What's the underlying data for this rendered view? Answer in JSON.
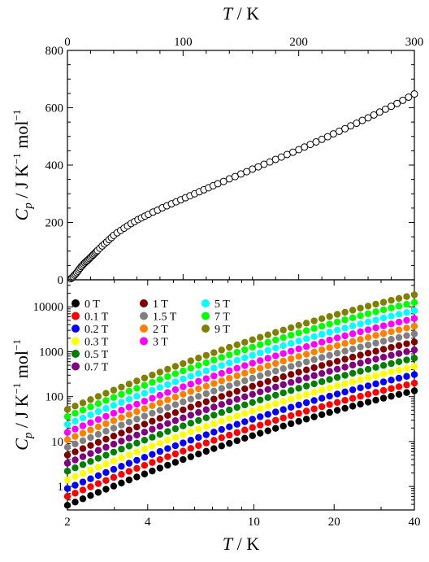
{
  "chart_data": [
    {
      "type": "scatter",
      "title": "",
      "xlabel": {
        "sym": "T",
        "unit": "K"
      },
      "ylabel": {
        "sym": "C",
        "sub": "p",
        "unit": "J K",
        "mol": "mol"
      },
      "x_axis_position": "top",
      "xlim": [
        0,
        300
      ],
      "ylim": [
        0,
        800
      ],
      "xticks": [
        0,
        100,
        200,
        300
      ],
      "yticks": [
        0,
        200,
        400,
        600,
        800
      ],
      "marker": "open-circle",
      "series": [
        {
          "x": [
            3,
            4,
            5,
            6,
            7,
            8,
            9,
            10,
            11,
            12,
            13,
            14,
            15,
            16,
            17,
            18,
            19,
            20,
            21,
            22,
            23,
            24,
            25,
            26,
            28,
            30,
            32,
            34,
            36,
            38,
            40,
            43,
            46,
            49,
            52,
            55,
            58,
            61,
            64,
            67,
            70,
            74,
            78,
            82,
            86,
            90,
            94,
            98,
            102,
            106,
            110,
            114,
            118,
            122,
            126,
            130,
            135,
            140,
            145,
            150,
            155,
            160,
            165,
            170,
            175,
            180,
            185,
            190,
            195,
            200,
            205,
            210,
            215,
            220,
            225,
            230,
            235,
            240,
            245,
            250,
            255,
            260,
            265,
            270,
            275,
            280,
            285,
            290,
            295,
            300
          ],
          "y": [
            4,
            7,
            11,
            16,
            20,
            25,
            30,
            36,
            41,
            46,
            50,
            55,
            59,
            63,
            66,
            70,
            74,
            78,
            82,
            86,
            90,
            94,
            98,
            102,
            110,
            118,
            125,
            132,
            140,
            147,
            155,
            164,
            172,
            180,
            188,
            196,
            203,
            210,
            216,
            222,
            228,
            236,
            243,
            251,
            258,
            265,
            272,
            279,
            286,
            293,
            300,
            307,
            314,
            321,
            328,
            335,
            343,
            352,
            360,
            369,
            377,
            386,
            394,
            403,
            411,
            420,
            428,
            437,
            445,
            454,
            463,
            472,
            481,
            490,
            499,
            509,
            518,
            527,
            537,
            546,
            556,
            565,
            575,
            585,
            595,
            605,
            615,
            626,
            637,
            648
          ]
        }
      ]
    },
    {
      "type": "scatter",
      "title": "",
      "xlabel": {
        "sym": "T",
        "unit": "K"
      },
      "ylabel": {
        "sym": "C",
        "sub": "p",
        "unit": "J K",
        "mol": "mol"
      },
      "xscale": "log",
      "yscale": "log",
      "xlim": [
        2,
        40
      ],
      "ylim": [
        0.3,
        40000
      ],
      "xticks": [
        2,
        4,
        10,
        20,
        40
      ],
      "yticks": [
        1,
        10,
        100,
        1000,
        10000
      ],
      "legend_placement": "top-left",
      "series": [
        {
          "name": "0 T",
          "color": "#000000",
          "y_at_2K": 0.38,
          "y_at_40K": 135
        },
        {
          "name": "0.1 T",
          "color": "#ff0000",
          "y_at_2K": 0.6,
          "y_at_40K": 200
        },
        {
          "name": "0.2 T",
          "color": "#0000ff",
          "y_at_2K": 0.9,
          "y_at_40K": 310
        },
        {
          "name": "0.3 T",
          "color": "#ffff00",
          "y_at_2K": 1.4,
          "y_at_40K": 470
        },
        {
          "name": "0.5 T",
          "color": "#008000",
          "y_at_2K": 2.2,
          "y_at_40K": 720
        },
        {
          "name": "0.7 T",
          "color": "#800080",
          "y_at_2K": 3.3,
          "y_at_40K": 1100
        },
        {
          "name": "1 T",
          "color": "#800000",
          "y_at_2K": 5.0,
          "y_at_40K": 1650
        },
        {
          "name": "1.5 T",
          "color": "#808080",
          "y_at_2K": 7.5,
          "y_at_40K": 2500
        },
        {
          "name": "2 T",
          "color": "#ff8000",
          "y_at_2K": 11,
          "y_at_40K": 3700
        },
        {
          "name": "3 T",
          "color": "#ff00ff",
          "y_at_2K": 16,
          "y_at_40K": 5500
        },
        {
          "name": "5 T",
          "color": "#00ffff",
          "y_at_2K": 24,
          "y_at_40K": 8200
        },
        {
          "name": "7 T",
          "color": "#00ff00",
          "y_at_2K": 36,
          "y_at_40K": 12500
        },
        {
          "name": "9 T",
          "color": "#808000",
          "y_at_2K": 52,
          "y_at_40K": 18500
        }
      ]
    }
  ]
}
